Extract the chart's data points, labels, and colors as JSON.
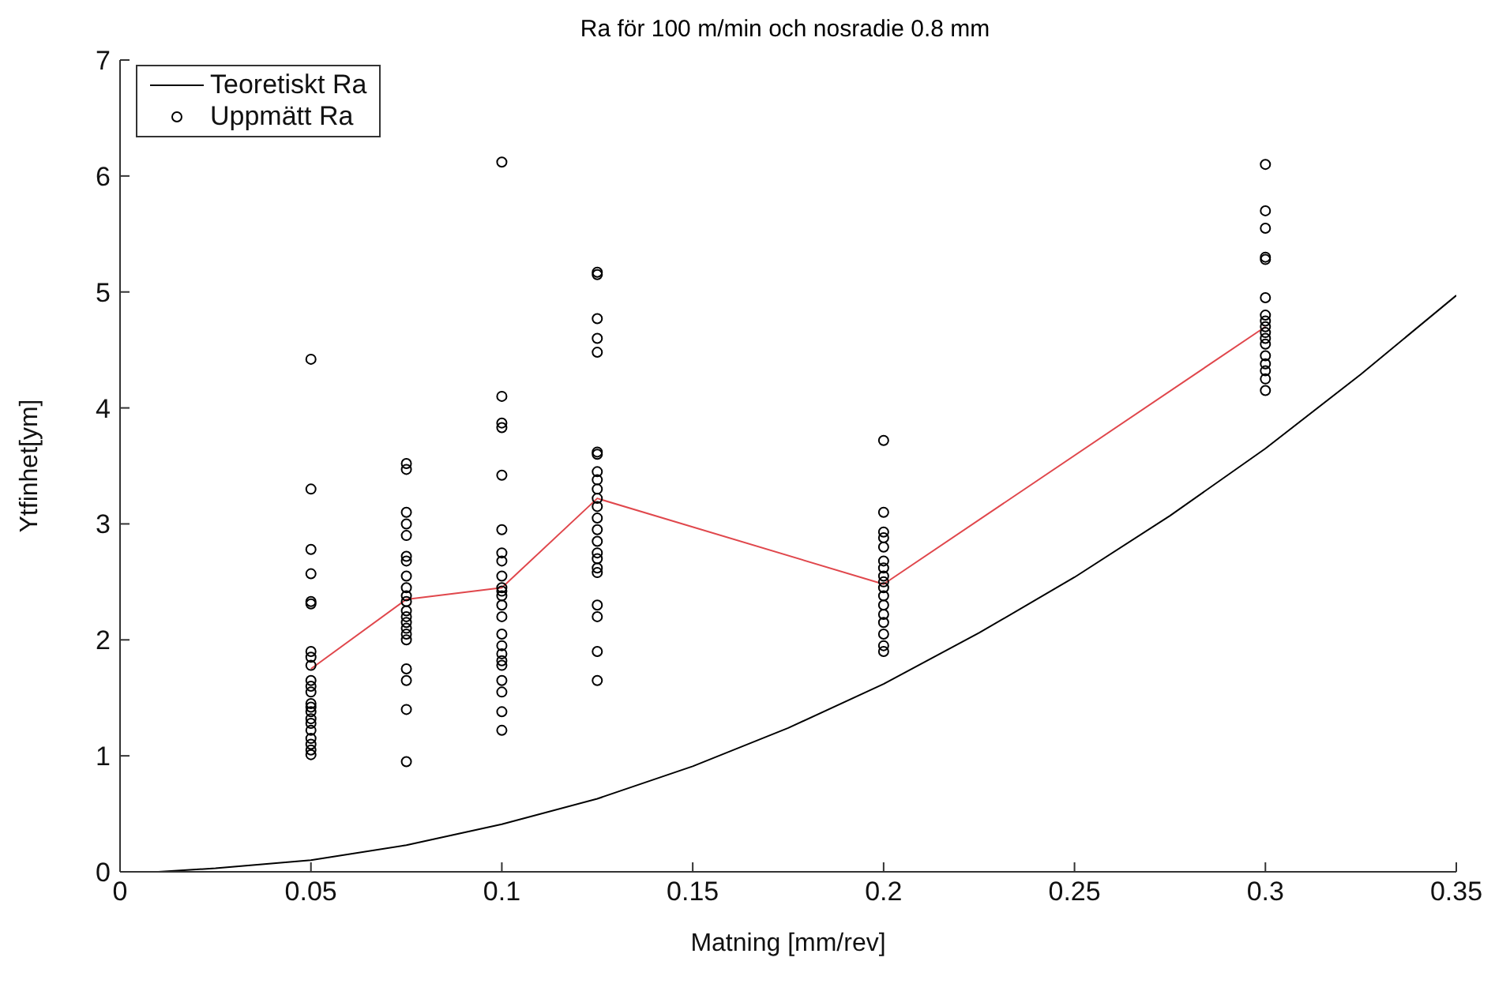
{
  "chart_data": {
    "type": "scatter",
    "title": "Ra för 100 m/min och nosradie 0.8 mm",
    "xlabel": "Matning [mm/rev]",
    "ylabel": "Ytfinhet[ym]",
    "xlim": [
      0,
      0.35
    ],
    "xticks": [
      0,
      0.05,
      0.1,
      0.15,
      0.2,
      0.25,
      0.3,
      0.35
    ],
    "ylim": [
      0,
      7
    ],
    "yticks": [
      0,
      1,
      2,
      3,
      4,
      5,
      6,
      7
    ],
    "grid": false,
    "legend": "top left",
    "series": [
      {
        "name": "Teoretiskt Ra",
        "type": "line",
        "color": "#000000",
        "marker": "none",
        "x": [
          0.01,
          0.025,
          0.05,
          0.075,
          0.1,
          0.125,
          0.15,
          0.175,
          0.2,
          0.225,
          0.25,
          0.275,
          0.3,
          0.325,
          0.35
        ],
        "values": [
          0,
          0.03,
          0.1,
          0.23,
          0.41,
          0.63,
          0.91,
          1.24,
          1.62,
          2.06,
          2.54,
          3.07,
          3.65,
          4.29,
          4.97
        ]
      },
      {
        "name": "Uppmätt Ra",
        "color": "#000000",
        "marker": "circle",
        "x": [
          0.05,
          0.05,
          0.05,
          0.05,
          0.05,
          0.05,
          0.05,
          0.05,
          0.05,
          0.05,
          0.05,
          0.05,
          0.05,
          0.05,
          0.05,
          0.05,
          0.05,
          0.05,
          0.05,
          0.05,
          0.05,
          0.05,
          0.075,
          0.075,
          0.075,
          0.075,
          0.075,
          0.075,
          0.075,
          0.075,
          0.075,
          0.075,
          0.075,
          0.075,
          0.075,
          0.075,
          0.075,
          0.075,
          0.075,
          0.075,
          0.075,
          0.075,
          0.075,
          0.1,
          0.1,
          0.1,
          0.1,
          0.1,
          0.1,
          0.1,
          0.1,
          0.1,
          0.1,
          0.1,
          0.1,
          0.1,
          0.1,
          0.1,
          0.1,
          0.1,
          0.1,
          0.1,
          0.1,
          0.1,
          0.1,
          0.1,
          0.125,
          0.125,
          0.125,
          0.125,
          0.125,
          0.125,
          0.125,
          0.125,
          0.125,
          0.125,
          0.125,
          0.125,
          0.125,
          0.125,
          0.125,
          0.125,
          0.125,
          0.125,
          0.125,
          0.125,
          0.125,
          0.125,
          0.125,
          0.2,
          0.2,
          0.2,
          0.2,
          0.2,
          0.2,
          0.2,
          0.2,
          0.2,
          0.2,
          0.2,
          0.2,
          0.2,
          0.2,
          0.2,
          0.2,
          0.2,
          0.3,
          0.3,
          0.3,
          0.3,
          0.3,
          0.3,
          0.3,
          0.3,
          0.3,
          0.3,
          0.3,
          0.3,
          0.3,
          0.3,
          0.3,
          0.3,
          0.3
        ],
        "values": [
          4.42,
          3.3,
          2.78,
          2.57,
          2.33,
          2.31,
          1.9,
          1.85,
          1.78,
          1.65,
          1.6,
          1.55,
          1.45,
          1.42,
          1.38,
          1.32,
          1.28,
          1.22,
          1.15,
          1.1,
          1.05,
          1.01,
          3.52,
          3.47,
          3.1,
          3.0,
          2.9,
          2.72,
          2.68,
          2.55,
          2.45,
          2.38,
          2.33,
          2.25,
          2.2,
          2.15,
          2.1,
          2.05,
          2.0,
          1.75,
          1.65,
          1.4,
          0.95,
          6.12,
          4.1,
          3.87,
          3.83,
          3.42,
          2.95,
          2.75,
          2.68,
          2.55,
          2.45,
          2.42,
          2.38,
          2.3,
          2.2,
          2.05,
          1.95,
          1.88,
          1.82,
          1.78,
          1.65,
          1.55,
          1.38,
          1.22,
          5.17,
          5.15,
          4.77,
          4.6,
          4.48,
          3.62,
          3.6,
          3.45,
          3.38,
          3.3,
          3.22,
          3.15,
          3.05,
          2.95,
          2.85,
          2.75,
          2.7,
          2.62,
          2.58,
          2.3,
          2.2,
          1.9,
          1.65,
          3.72,
          3.1,
          2.93,
          2.88,
          2.8,
          2.68,
          2.62,
          2.55,
          2.5,
          2.45,
          2.38,
          2.3,
          2.22,
          2.15,
          2.05,
          1.95,
          1.9,
          6.1,
          5.7,
          5.55,
          5.3,
          5.28,
          4.95,
          4.8,
          4.75,
          4.7,
          4.65,
          4.6,
          4.55,
          4.45,
          4.38,
          4.32,
          4.25,
          4.15
        ]
      },
      {
        "type": "line",
        "color": "#e0474c",
        "marker": "none",
        "x": [
          0.05,
          0.075,
          0.1,
          0.125,
          0.2,
          0.3
        ],
        "values": [
          1.75,
          2.35,
          2.45,
          3.22,
          2.48,
          4.7
        ]
      }
    ]
  }
}
